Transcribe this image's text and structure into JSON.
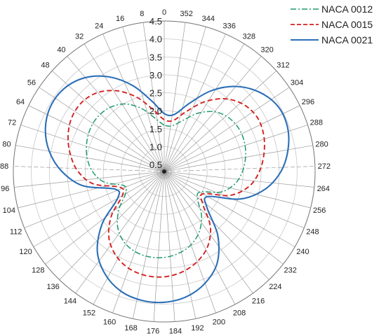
{
  "chart_data": {
    "type": "polar-line",
    "angle_direction": "clockwise",
    "angle_zero": "top",
    "angular_ticks": [
      "0",
      "8",
      "16",
      "24",
      "32",
      "40",
      "48",
      "56",
      "64",
      "72",
      "80",
      "88",
      "96",
      "104",
      "112",
      "120",
      "128",
      "136",
      "144",
      "152",
      "160",
      "168",
      "176",
      "184",
      "192",
      "200",
      "208",
      "216",
      "224",
      "232",
      "240",
      "248",
      "256",
      "264",
      "272",
      "280",
      "288",
      "296",
      "304",
      "312",
      "320",
      "328",
      "336",
      "344",
      "352"
    ],
    "radial_ticks": [
      "0.5",
      "1.0",
      "1.5",
      "2.0",
      "2.5",
      "3.0",
      "3.5",
      "4.0",
      "4.5"
    ],
    "rlim": [
      0.5,
      4.5
    ],
    "grid": true,
    "legend_position": "top-right",
    "series": [
      {
        "name": "NACA 0012",
        "color": "#1e9a6a",
        "linestyle": "dash-dot",
        "theta": [
          0,
          10,
          20,
          30,
          40,
          50,
          60,
          70,
          80,
          90,
          100,
          110,
          120,
          130,
          140,
          150,
          160,
          170,
          180,
          190,
          200,
          210,
          220,
          230,
          240,
          250,
          260,
          270,
          280,
          290,
          300,
          310,
          320,
          330,
          340,
          350
        ],
        "r": [
          1.6,
          1.82,
          2.18,
          2.48,
          2.64,
          2.7,
          2.68,
          2.6,
          2.48,
          2.3,
          2.0,
          1.48,
          1.55,
          1.95,
          2.32,
          2.56,
          2.68,
          2.72,
          2.7,
          2.62,
          2.48,
          2.25,
          1.92,
          1.52,
          1.45,
          1.98,
          2.3,
          2.48,
          2.6,
          2.68,
          2.7,
          2.64,
          2.48,
          2.18,
          1.82,
          1.6
        ]
      },
      {
        "name": "NACA 0015",
        "color": "#d42020",
        "linestyle": "dashed",
        "theta": [
          0,
          10,
          20,
          30,
          40,
          50,
          60,
          70,
          80,
          90,
          100,
          110,
          120,
          130,
          140,
          150,
          160,
          170,
          180,
          190,
          200,
          210,
          220,
          230,
          240,
          250,
          260,
          270,
          280,
          290,
          300,
          310,
          320,
          330,
          340,
          350
        ],
        "r": [
          1.75,
          2.05,
          2.5,
          2.9,
          3.18,
          3.3,
          3.28,
          3.15,
          2.95,
          2.7,
          2.3,
          1.6,
          1.65,
          2.22,
          2.7,
          3.0,
          3.18,
          3.25,
          3.24,
          3.15,
          2.98,
          2.72,
          2.3,
          1.7,
          1.55,
          2.25,
          2.7,
          2.95,
          3.12,
          3.25,
          3.3,
          3.2,
          2.95,
          2.55,
          2.08,
          1.75
        ]
      },
      {
        "name": "NACA 0021",
        "color": "#2c6fb8",
        "linestyle": "solid",
        "theta": [
          0,
          10,
          20,
          30,
          40,
          50,
          60,
          70,
          80,
          90,
          100,
          110,
          120,
          130,
          140,
          150,
          160,
          170,
          180,
          190,
          200,
          210,
          220,
          230,
          240,
          250,
          260,
          270,
          280,
          290,
          300,
          310,
          320,
          330,
          340,
          350
        ],
        "r": [
          1.92,
          2.3,
          2.85,
          3.35,
          3.72,
          3.92,
          3.95,
          3.82,
          3.55,
          3.15,
          2.6,
          1.75,
          1.8,
          2.55,
          3.2,
          3.6,
          3.85,
          3.95,
          3.95,
          3.85,
          3.62,
          3.25,
          2.62,
          1.85,
          1.7,
          2.55,
          3.15,
          3.55,
          3.8,
          3.95,
          3.95,
          3.75,
          3.4,
          2.9,
          2.32,
          1.92
        ]
      }
    ]
  }
}
